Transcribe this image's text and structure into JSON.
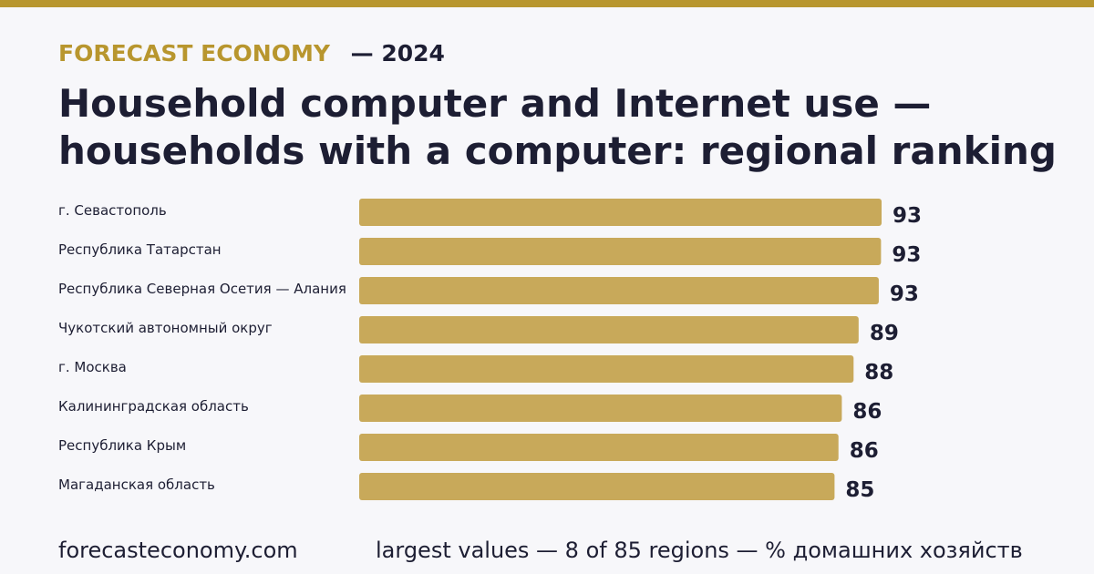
{
  "header": {
    "brand": "FORECAST ECONOMY",
    "year": "— 2024",
    "title_line1": "Household computer and Internet use —",
    "title_line2": "households with a computer: regional ranking"
  },
  "footer": {
    "site": "forecasteconomy.com",
    "note": "largest values — 8 of 85 regions — % домашних хозяйств"
  },
  "colors": {
    "accent": "#b8962e",
    "bar": "#c8a95a",
    "text": "#1d1e33",
    "background": "#f7f7fa"
  },
  "chart_data": {
    "type": "bar",
    "orientation": "horizontal",
    "categories": [
      "г. Севастополь",
      "Республика Татарстан",
      "Республика Северная Осетия — Алания",
      "Чукотский автономный округ",
      "г. Москва",
      "Калининградская область",
      "Республика Крым",
      "Магаданская область"
    ],
    "values": [
      93,
      93,
      93,
      89,
      88,
      86,
      86,
      85
    ],
    "value_labels": [
      "93",
      "93",
      "93",
      "89",
      "88",
      "86",
      "86",
      "85"
    ],
    "true_values": [
      93.3,
      93.2,
      92.8,
      89.2,
      88.3,
      86.2,
      85.6,
      84.9
    ],
    "xlim": [
      0,
      93.3
    ],
    "grid": false,
    "legend": "none"
  }
}
